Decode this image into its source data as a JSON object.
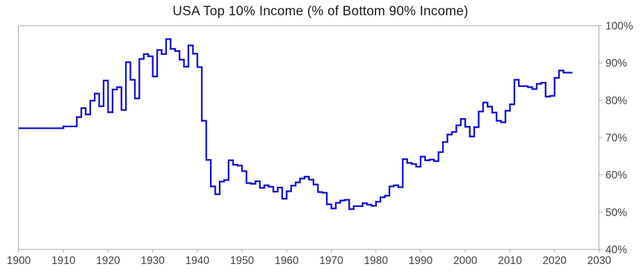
{
  "title": "USA Top 10% Income (% of Bottom 90% Income)",
  "colors": {
    "line": "#1212CF",
    "axis": "#A6A6A6",
    "tick_label": "#404040",
    "title": "#1A1A1A",
    "background": "#FFFFFF"
  },
  "chart_data": {
    "type": "line",
    "subtype": "step",
    "title": "USA Top 10% Income (% of Bottom 90% Income)",
    "xlabel": "",
    "ylabel": "",
    "xlim": [
      1900,
      2030
    ],
    "ylim": [
      40,
      100
    ],
    "y_axis_side": "right",
    "grid": false,
    "legend": false,
    "x_ticks": [
      1900,
      1910,
      1920,
      1930,
      1940,
      1950,
      1960,
      1970,
      1980,
      1990,
      2000,
      2010,
      2020,
      2030
    ],
    "y_ticks": [
      40,
      50,
      60,
      70,
      80,
      90,
      100
    ],
    "y_tick_labels": [
      "40%",
      "50%",
      "60%",
      "70%",
      "80%",
      "90%",
      "100%"
    ],
    "x_start_year": 1900,
    "x": [
      1900,
      1901,
      1902,
      1903,
      1904,
      1905,
      1906,
      1907,
      1908,
      1909,
      1910,
      1911,
      1912,
      1913,
      1914,
      1915,
      1916,
      1917,
      1918,
      1919,
      1920,
      1921,
      1922,
      1923,
      1924,
      1925,
      1926,
      1927,
      1928,
      1929,
      1930,
      1931,
      1932,
      1933,
      1934,
      1935,
      1936,
      1937,
      1938,
      1939,
      1940,
      1941,
      1942,
      1943,
      1944,
      1945,
      1946,
      1947,
      1948,
      1949,
      1950,
      1951,
      1952,
      1953,
      1954,
      1955,
      1956,
      1957,
      1958,
      1959,
      1960,
      1961,
      1962,
      1963,
      1964,
      1965,
      1966,
      1967,
      1968,
      1969,
      1970,
      1971,
      1972,
      1973,
      1974,
      1975,
      1976,
      1977,
      1978,
      1979,
      1980,
      1981,
      1982,
      1983,
      1984,
      1985,
      1986,
      1987,
      1988,
      1989,
      1990,
      1991,
      1992,
      1993,
      1994,
      1995,
      1996,
      1997,
      1998,
      1999,
      2000,
      2001,
      2002,
      2003,
      2004,
      2005,
      2006,
      2007,
      2008,
      2009,
      2010,
      2011,
      2012,
      2013,
      2014,
      2015,
      2016,
      2017,
      2018,
      2019,
      2020,
      2021,
      2022,
      2023
    ],
    "values": [
      72.5,
      72.5,
      72.5,
      72.5,
      72.5,
      72.5,
      72.5,
      72.5,
      72.5,
      72.5,
      73.0,
      73.0,
      73.0,
      75.5,
      77.9,
      76.2,
      79.9,
      81.8,
      78.4,
      85.3,
      76.8,
      82.9,
      83.5,
      77.4,
      90.2,
      85.5,
      80.5,
      91.1,
      92.4,
      91.8,
      86.4,
      93.5,
      92.4,
      96.4,
      93.8,
      93.2,
      90.9,
      89.0,
      94.7,
      92.5,
      88.9,
      74.5,
      64.0,
      56.9,
      54.8,
      58.2,
      58.6,
      63.9,
      62.7,
      62.5,
      61.0,
      57.8,
      57.6,
      58.3,
      56.5,
      57.2,
      56.8,
      55.5,
      56.6,
      53.6,
      55.6,
      57.1,
      58.0,
      59.0,
      59.5,
      58.7,
      57.4,
      55.4,
      55.2,
      52.1,
      51.0,
      52.5,
      53.1,
      53.3,
      50.8,
      51.6,
      51.6,
      52.4,
      52.0,
      51.7,
      52.8,
      54.0,
      54.4,
      56.9,
      57.2,
      56.7,
      64.2,
      63.2,
      62.9,
      62.2,
      64.9,
      63.9,
      64.1,
      63.7,
      66.1,
      68.8,
      70.8,
      71.5,
      73.3,
      75.0,
      72.9,
      70.3,
      72.8,
      77.0,
      79.4,
      78.3,
      76.7,
      74.5,
      74.1,
      77.2,
      78.9,
      85.5,
      83.8,
      83.8,
      83.5,
      83.0,
      84.4,
      84.7,
      81.0,
      81.2,
      86.0,
      88.0,
      87.4,
      87.4
    ]
  }
}
